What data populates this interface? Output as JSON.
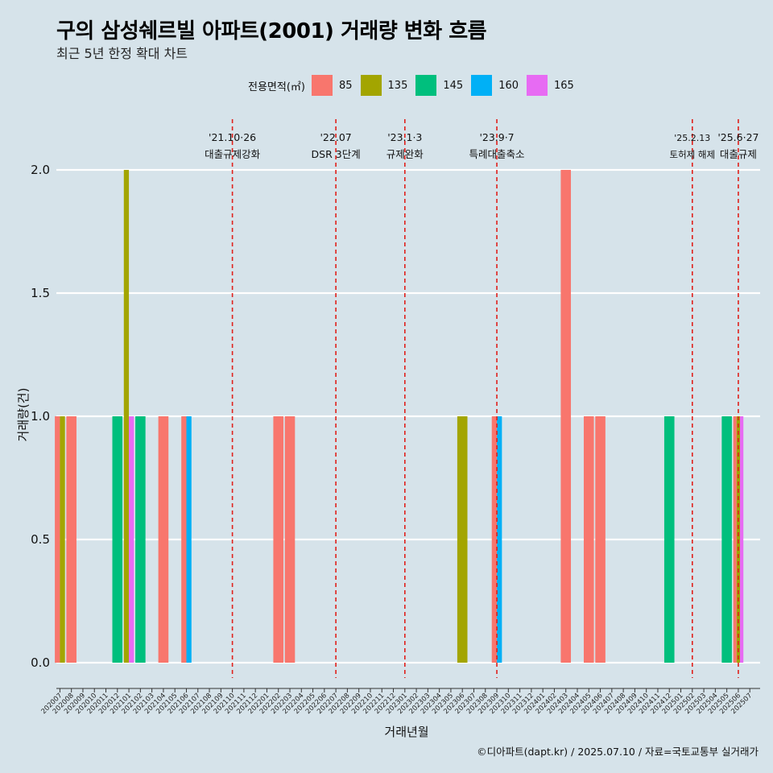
{
  "title": "구의 삼성쉐르빌 아파트(2001) 거래량 변화 흐름",
  "subtitle": "최근 5년 한정 확대 차트",
  "legend_title": "전용면적(㎡)",
  "caption": "©디아파트(dapt.kr) / 2025.07.10 / 자료=국토교통부 실거래가",
  "chart_data": {
    "type": "bar",
    "xlabel": "거래년월",
    "ylabel": "거래량(건)",
    "ylim": [
      0,
      2
    ],
    "yticks": [
      "0.0",
      "0.5",
      "1.0",
      "1.5",
      "2.0"
    ],
    "grid": true,
    "legend_position": "top",
    "categories": [
      "202007",
      "202008",
      "202009",
      "202010",
      "202011",
      "202012",
      "202101",
      "202102",
      "202103",
      "202104",
      "202105",
      "202106",
      "202107",
      "202108",
      "202109",
      "202110",
      "202111",
      "202112",
      "202201",
      "202202",
      "202203",
      "202204",
      "202205",
      "202206",
      "202207",
      "202208",
      "202209",
      "202210",
      "202211",
      "202212",
      "202301",
      "202302",
      "202303",
      "202304",
      "202305",
      "202306",
      "202307",
      "202308",
      "202309",
      "202310",
      "202311",
      "202312",
      "202401",
      "202402",
      "202403",
      "202404",
      "202405",
      "202406",
      "202407",
      "202408",
      "202409",
      "202410",
      "202411",
      "202412",
      "202501",
      "202502",
      "202503",
      "202504",
      "202505",
      "202506",
      "202507"
    ],
    "series": [
      {
        "name": "85",
        "color": "#f8766d",
        "points": [
          [
            "202007",
            1
          ],
          [
            "202008",
            1
          ],
          [
            "202104",
            1
          ],
          [
            "202106",
            1
          ],
          [
            "202202",
            1
          ],
          [
            "202203",
            1
          ],
          [
            "202309",
            1
          ],
          [
            "202403",
            2
          ],
          [
            "202405",
            1
          ],
          [
            "202406",
            1
          ],
          [
            "202506",
            1
          ]
        ]
      },
      {
        "name": "135",
        "color": "#a3a500",
        "points": [
          [
            "202007",
            1
          ],
          [
            "202101",
            2
          ],
          [
            "202306",
            1
          ],
          [
            "202506",
            1
          ]
        ]
      },
      {
        "name": "145",
        "color": "#00bf7d",
        "points": [
          [
            "202012",
            1
          ],
          [
            "202102",
            1
          ],
          [
            "202412",
            1
          ],
          [
            "202505",
            1
          ]
        ]
      },
      {
        "name": "160",
        "color": "#00b0f6",
        "points": [
          [
            "202106",
            1
          ],
          [
            "202309",
            1
          ]
        ]
      },
      {
        "name": "165",
        "color": "#e76bf3",
        "points": [
          [
            "202101",
            1
          ],
          [
            "202506",
            1
          ]
        ]
      }
    ],
    "events": [
      {
        "month": "202110",
        "date": "'21.10·26",
        "label": "대출규제강화"
      },
      {
        "month": "202207",
        "date": "'22.07",
        "label": "DSR 3단계"
      },
      {
        "month": "202301",
        "date": "'23.1·3",
        "label": "규제완화"
      },
      {
        "month": "202309",
        "date": "'23.9·7",
        "label": "특례대출축소"
      },
      {
        "month": "202502",
        "date": "'25.2.13",
        "label": "토허제 해제"
      },
      {
        "month": "202506",
        "date": "'25.6·27",
        "label": "대출규제"
      }
    ]
  }
}
